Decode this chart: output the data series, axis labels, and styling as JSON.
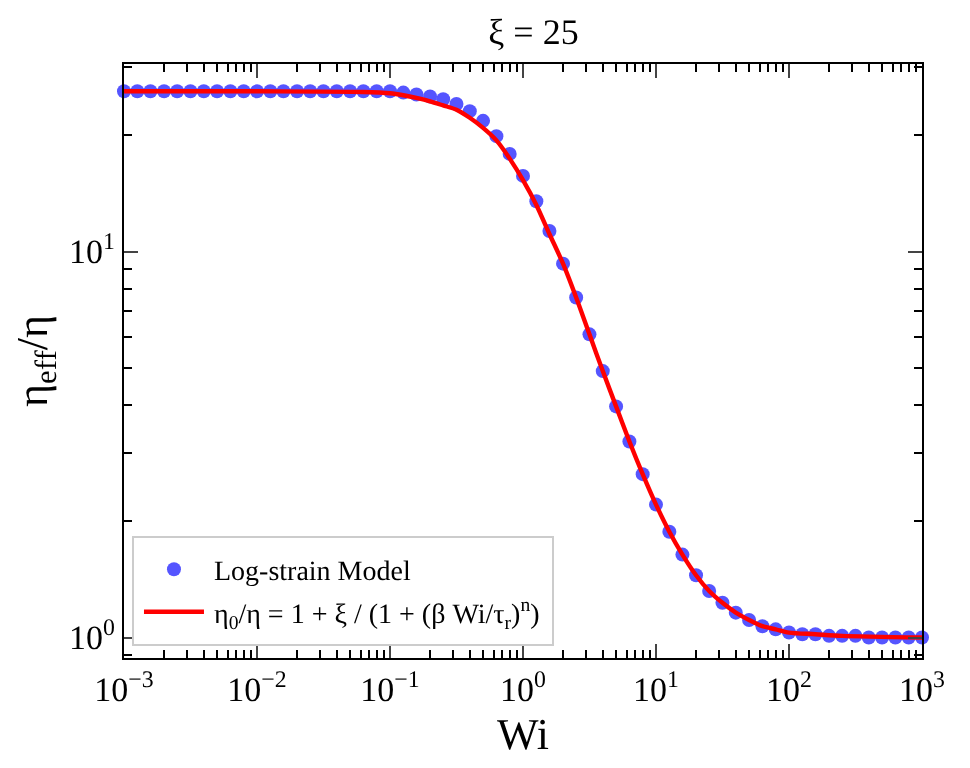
{
  "chart_data": {
    "type": "scatter",
    "title": "ξ = 25",
    "xlabel": "Wi",
    "ylabel": "η$_{eff}$/η",
    "log": "xy",
    "grid": false,
    "legend": "bottom left",
    "xlim": [
      0.001,
      1000
    ],
    "ylim": [
      0.885,
      30.6
    ],
    "xticks": [
      {
        "value": 0.001,
        "label": "10$^{−3}$"
      },
      {
        "value": 0.01,
        "label": "10$^{−2}$"
      },
      {
        "value": 0.1,
        "label": "10$^{−1}$"
      },
      {
        "value": 1,
        "label": "10$^{0}$"
      },
      {
        "value": 10,
        "label": "10$^{1}$"
      },
      {
        "value": 100,
        "label": "10$^{2}$"
      },
      {
        "value": 1000,
        "label": "10$^{3}$"
      }
    ],
    "yticks": [
      {
        "value": 1,
        "label": "10$^{0}$"
      },
      {
        "value": 10,
        "label": "10$^{1}$"
      }
    ],
    "series": [
      {
        "name": "Log-strain Model",
        "marker": "circle",
        "color": "#5555ff",
        "x": [
          0.001,
          0.00126,
          0.00158,
          0.002,
          0.00251,
          0.00316,
          0.00398,
          0.00501,
          0.00631,
          0.00794,
          0.01,
          0.0126,
          0.0158,
          0.02,
          0.0251,
          0.0316,
          0.0398,
          0.0501,
          0.0631,
          0.0794,
          0.1,
          0.126,
          0.158,
          0.2,
          0.251,
          0.316,
          0.398,
          0.501,
          0.631,
          0.794,
          1,
          1.26,
          1.58,
          2,
          2.51,
          3.16,
          3.98,
          5.01,
          6.31,
          7.94,
          10,
          12.6,
          15.8,
          20,
          25.1,
          31.6,
          39.8,
          50.1,
          63.1,
          79.4,
          100,
          126,
          158,
          200,
          251,
          316,
          398,
          501,
          631,
          794,
          1000
        ],
        "values": [
          26.0,
          26.0,
          26.0,
          26.0,
          26.0,
          26.0,
          26.0,
          26.0,
          26.0,
          26.0,
          26.0,
          26.0,
          26.0,
          26.0,
          26.0,
          26.0,
          26.0,
          26.0,
          26.0,
          26.0,
          26.0,
          25.8,
          25.5,
          25.2,
          24.8,
          24.1,
          23.1,
          21.8,
          19.9,
          17.9,
          15.7,
          13.5,
          11.3,
          9.3,
          7.6,
          6.1,
          4.9,
          3.97,
          3.22,
          2.65,
          2.21,
          1.88,
          1.64,
          1.45,
          1.32,
          1.23,
          1.16,
          1.11,
          1.07,
          1.05,
          1.03,
          1.02,
          1.02,
          1.01,
          1.01,
          1.01,
          1.0,
          1.0,
          1.0,
          1.0,
          1.0
        ]
      },
      {
        "name": "η$_{0}$/η = 1 + ξ / (1 + (β Wi/τ$_{r}$)$^{n}$)",
        "type": "line",
        "line_style": "solid",
        "color": "#ff0000",
        "x": [
          0.001,
          0.01,
          0.0631,
          0.1,
          0.126,
          0.158,
          0.2,
          0.251,
          0.316,
          0.398,
          0.501,
          0.631,
          0.794,
          1,
          1.26,
          1.58,
          2,
          2.51,
          3.16,
          3.98,
          5.01,
          6.31,
          7.94,
          10,
          12.6,
          15.8,
          20,
          25.1,
          31.6,
          39.8,
          50.1,
          63.1,
          79.4,
          100,
          158,
          251,
          1000
        ],
        "values": [
          26.0,
          26.0,
          25.9,
          25.7,
          25.4,
          25.0,
          24.5,
          23.9,
          23.3,
          22.2,
          20.9,
          19.4,
          17.4,
          15.3,
          13.2,
          11.1,
          9.3,
          7.6,
          6.1,
          4.9,
          3.97,
          3.22,
          2.65,
          2.21,
          1.88,
          1.64,
          1.45,
          1.32,
          1.23,
          1.16,
          1.11,
          1.07,
          1.05,
          1.03,
          1.02,
          1.01,
          1.0
        ]
      }
    ]
  }
}
